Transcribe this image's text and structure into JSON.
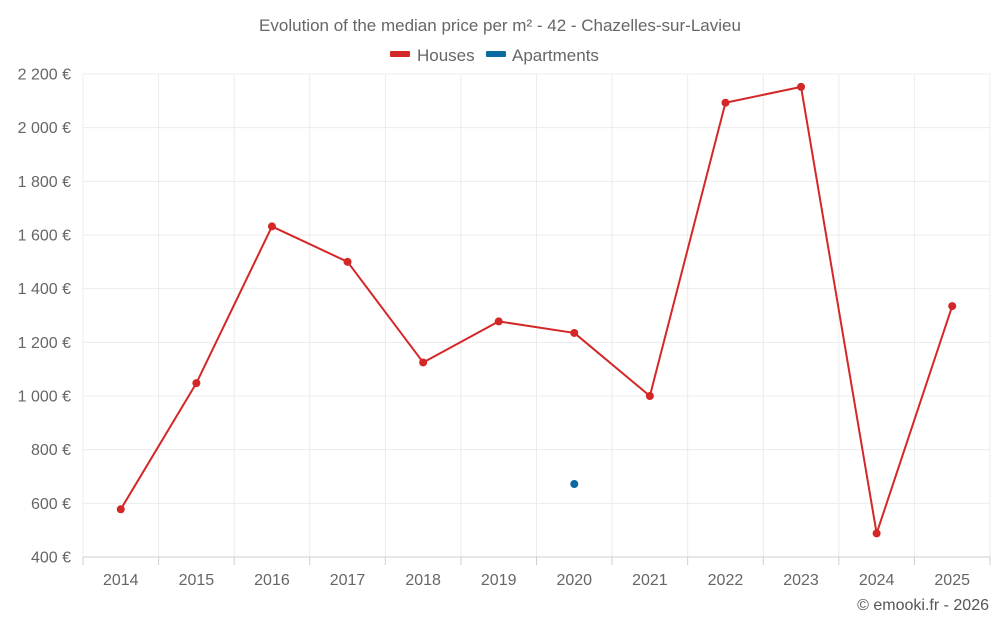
{
  "chart_data": {
    "type": "line",
    "title": "Evolution of the median price per m² - 42 - Chazelles-sur-Lavieu",
    "categories": [
      "2014",
      "2015",
      "2016",
      "2017",
      "2018",
      "2019",
      "2020",
      "2021",
      "2022",
      "2023",
      "2024",
      "2025"
    ],
    "series": [
      {
        "name": "Houses",
        "color": "#d42727",
        "values": [
          578,
          1048,
          1632,
          1500,
          1125,
          1278,
          1235,
          1000,
          2093,
          2152,
          488,
          1335
        ]
      },
      {
        "name": "Apartments",
        "color": "#0a6aa1",
        "values": [
          null,
          null,
          null,
          null,
          null,
          null,
          672,
          null,
          null,
          null,
          null,
          null
        ]
      }
    ],
    "y_ticks": [
      400,
      600,
      800,
      1000,
      1200,
      1400,
      1600,
      1800,
      2000,
      2200
    ],
    "y_tick_labels": [
      "400 €",
      "600 €",
      "800 €",
      "1 000 €",
      "1 200 €",
      "1 400 €",
      "1 600 €",
      "1 800 €",
      "2 000 €",
      "2 200 €"
    ],
    "ylim": [
      400,
      2200
    ],
    "xlabel": "",
    "ylabel": "",
    "grid": true,
    "legend_position": "top-center"
  },
  "credit": "© emooki.fr - 2026"
}
